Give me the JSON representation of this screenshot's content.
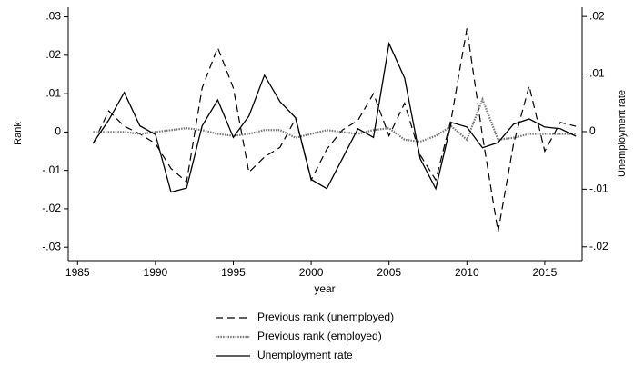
{
  "chart_data": {
    "type": "line",
    "x_label": "year",
    "y_label": "Rank",
    "y2_label": "Unemployment rate",
    "x": [
      1986,
      1987,
      1988,
      1989,
      1990,
      1991,
      1992,
      1993,
      1994,
      1995,
      1996,
      1997,
      1998,
      1999,
      2000,
      2001,
      2002,
      2003,
      2004,
      2005,
      2006,
      2007,
      2008,
      2009,
      2010,
      2011,
      2012,
      2013,
      2014,
      2015,
      2016,
      2017
    ],
    "series": [
      {
        "name": "Previous rank (unemployed)",
        "color": "#000000",
        "style": "dashed",
        "axis": "y",
        "values": [
          -0.003,
          0.0055,
          0.0015,
          -0.0005,
          -0.003,
          -0.0095,
          -0.013,
          0.0115,
          0.022,
          0.0115,
          -0.0105,
          -0.0065,
          -0.004,
          0.0035,
          -0.0125,
          -0.0045,
          0.0005,
          0.003,
          0.01,
          -0.001,
          0.0075,
          -0.006,
          -0.0125,
          0.0035,
          0.027,
          -0.001,
          -0.026,
          -0.003,
          0.012,
          -0.005,
          0.0025,
          0.0015
        ]
      },
      {
        "name": "Previous rank (employed)",
        "color": "#777777",
        "style": "dotted",
        "axis": "y",
        "values": [
          0,
          0,
          0,
          -0.0005,
          0,
          0.0005,
          0.001,
          0.0005,
          -0.0005,
          -0.001,
          -0.0005,
          0.0005,
          0.0005,
          -0.0015,
          -0.0005,
          0.0005,
          0,
          -0.0005,
          0.0005,
          0.001,
          -0.002,
          -0.0025,
          -0.001,
          0.0015,
          -0.002,
          0.0085,
          -0.002,
          -0.0015,
          -0.0005,
          -0.0005,
          -0.0005,
          -0.0005
        ]
      },
      {
        "name": "Unemployment rate",
        "color": "#000000",
        "style": "solid",
        "axis": "y2",
        "values": [
          -0.002,
          0.002,
          0.0068,
          0.001,
          -0.0005,
          -0.0105,
          -0.0098,
          0.001,
          0.0055,
          -0.001,
          0.0027,
          0.0098,
          0.0052,
          0.0024,
          -0.0083,
          -0.0099,
          -0.0047,
          0.0005,
          -0.001,
          0.0153,
          0.0093,
          -0.0047,
          -0.0099,
          0.0016,
          0.0008,
          -0.0028,
          -0.0019,
          0.0013,
          0.0022,
          0.0008,
          0.0005,
          -0.0008
        ]
      }
    ],
    "xlim": [
      1984.4,
      2017.4
    ],
    "xticks": [
      1985,
      1990,
      1995,
      2000,
      2005,
      2010,
      2015
    ],
    "ylim": [
      -0.0335,
      0.0325
    ],
    "yticks": [
      {
        "value": -0.03,
        "label": "-.03"
      },
      {
        "value": -0.02,
        "label": "-.02"
      },
      {
        "value": -0.01,
        "label": "-.01"
      },
      0,
      {
        "value": 0.01,
        "label": ".01"
      },
      {
        "value": 0.02,
        "label": ".02"
      },
      {
        "value": 0.03,
        "label": ".03"
      }
    ],
    "y2lim": [
      -0.0224,
      0.0216
    ],
    "y2ticks": [
      {
        "value": -0.02,
        "label": "-.02"
      },
      {
        "value": -0.01,
        "label": "-.01"
      },
      0,
      {
        "value": 0.01,
        "label": ".01"
      },
      {
        "value": 0.02,
        "label": ".02"
      }
    ],
    "legend": "bottom"
  }
}
